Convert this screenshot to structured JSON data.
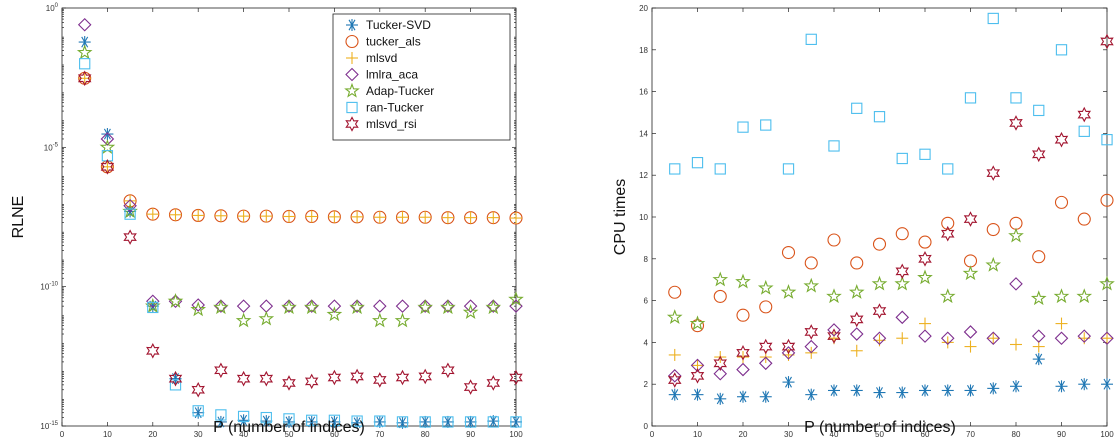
{
  "chart_data": [
    {
      "type": "scatter",
      "id": "rlne",
      "xlabel": "P (number of indices)",
      "ylabel": "RLNE",
      "yscale": "log",
      "xlim": [
        0,
        100
      ],
      "ylim": [
        1e-15,
        1
      ],
      "xticks": [
        "0",
        "10",
        "20",
        "30",
        "40",
        "50",
        "60",
        "70",
        "80",
        "90",
        "100"
      ],
      "yticks": [
        {
          "base": "10",
          "exp": "-15",
          "value": 1e-15
        },
        {
          "base": "10",
          "exp": "-10",
          "value": 1e-10
        },
        {
          "base": "10",
          "exp": "-5",
          "value": 1e-05
        },
        {
          "base": "10",
          "exp": "0",
          "value": 1
        }
      ],
      "legend_position": "top-right",
      "x": [
        5,
        10,
        15,
        20,
        25,
        30,
        35,
        40,
        45,
        50,
        55,
        60,
        65,
        70,
        75,
        80,
        85,
        90,
        95,
        100
      ],
      "series": [
        {
          "name": "Tucker-SVD",
          "marker": "asterisk",
          "color": "#1f77b4",
          "values": [
            0.06,
            3e-05,
            5e-08,
            2e-11,
            5e-14,
            3e-15,
            1.4e-15,
            1.6e-15,
            1.5e-15,
            1.4e-15,
            1.4e-15,
            1.4e-15,
            1.3e-15,
            1.4e-15,
            1.3e-15,
            1.4e-15,
            1.4e-15,
            1.4e-15,
            1.5e-15,
            1.4e-15
          ]
        },
        {
          "name": "tucker_als",
          "marker": "circle",
          "color": "#d95319",
          "values": [
            0.003,
            2e-06,
            1.2e-07,
            4e-08,
            3.8e-08,
            3.6e-08,
            3.5e-08,
            3.4e-08,
            3.4e-08,
            3.3e-08,
            3.3e-08,
            3.2e-08,
            3.2e-08,
            3.1e-08,
            3.1e-08,
            3.1e-08,
            3e-08,
            3e-08,
            3e-08,
            2.9e-08
          ]
        },
        {
          "name": "mlsvd",
          "marker": "plus",
          "color": "#edb120",
          "values": [
            0.003,
            2e-06,
            1.2e-07,
            4e-08,
            3.8e-08,
            3.6e-08,
            3.5e-08,
            3.4e-08,
            3.4e-08,
            3.3e-08,
            3.3e-08,
            3.2e-08,
            3.2e-08,
            3.1e-08,
            3.1e-08,
            3.1e-08,
            3e-08,
            3e-08,
            3e-08,
            2.9e-08
          ]
        },
        {
          "name": "lmlra_aca",
          "marker": "diamond",
          "color": "#7e2f8e",
          "values": [
            0.25,
            2e-05,
            8e-08,
            3e-11,
            3e-11,
            2.2e-11,
            2e-11,
            2e-11,
            2e-11,
            2e-11,
            2e-11,
            2e-11,
            2e-11,
            2e-11,
            2e-11,
            2e-11,
            2e-11,
            2e-11,
            2e-11,
            2e-11
          ]
        },
        {
          "name": "Adap-Tucker",
          "marker": "star5",
          "color": "#77ac30",
          "values": [
            0.025,
            1e-05,
            5e-08,
            2e-11,
            3e-11,
            1.5e-11,
            1.8e-11,
            6e-12,
            7e-12,
            1.8e-11,
            1.8e-11,
            1e-11,
            1.8e-11,
            6e-12,
            6e-12,
            1.8e-11,
            1.8e-11,
            1.2e-11,
            1.8e-11,
            3.5e-11
          ]
        },
        {
          "name": "ran-Tucker",
          "marker": "square",
          "color": "#4dbeee",
          "values": [
            0.01,
            5e-06,
            4e-08,
            1.8e-11,
            3e-14,
            3.5e-15,
            2.5e-15,
            2.2e-15,
            2e-15,
            1.8e-15,
            1.6e-15,
            1.6e-15,
            1.5e-15,
            1.5e-15,
            1.4e-15,
            1.4e-15,
            1.4e-15,
            1.4e-15,
            1.4e-15,
            1.4e-15
          ]
        },
        {
          "name": "mlsvd_rsi",
          "marker": "hexagram",
          "color": "#a2142f",
          "values": [
            0.003,
            2e-06,
            6e-09,
            5e-13,
            5e-14,
            2e-14,
            1e-13,
            5e-14,
            5e-14,
            3.5e-14,
            4e-14,
            5.5e-14,
            6e-14,
            4.5e-14,
            5.5e-14,
            6e-14,
            1e-13,
            2.5e-14,
            3.5e-14,
            5.5e-14
          ]
        }
      ]
    },
    {
      "type": "scatter",
      "id": "cpu",
      "xlabel": "P (number of indices)",
      "ylabel": "CPU times",
      "yscale": "linear",
      "xlim": [
        0,
        100
      ],
      "ylim": [
        0,
        20
      ],
      "xticks": [
        "0",
        "10",
        "20",
        "30",
        "40",
        "50",
        "60",
        "70",
        "80",
        "90",
        "100"
      ],
      "yticks": [
        "0",
        "2",
        "4",
        "6",
        "8",
        "10",
        "12",
        "14",
        "16",
        "18",
        "20"
      ],
      "x": [
        5,
        10,
        15,
        20,
        25,
        30,
        35,
        40,
        45,
        50,
        55,
        60,
        65,
        70,
        75,
        80,
        85,
        90,
        95,
        100
      ],
      "series": [
        {
          "name": "Tucker-SVD",
          "marker": "asterisk",
          "color": "#1f77b4",
          "values": [
            1.5,
            1.5,
            1.3,
            1.4,
            1.4,
            2.1,
            1.5,
            1.7,
            1.7,
            1.6,
            1.6,
            1.7,
            1.7,
            1.7,
            1.8,
            1.9,
            3.2,
            1.9,
            2.0,
            2.0
          ]
        },
        {
          "name": "tucker_als",
          "marker": "circle",
          "color": "#d95319",
          "values": [
            6.4,
            4.8,
            6.2,
            5.3,
            5.7,
            8.3,
            7.8,
            8.9,
            7.8,
            8.7,
            9.2,
            8.8,
            9.7,
            7.9,
            9.4,
            9.7,
            8.1,
            10.7,
            9.9,
            10.8
          ]
        },
        {
          "name": "mlsvd",
          "marker": "plus",
          "color": "#edb120",
          "values": [
            3.4,
            2.9,
            3.3,
            3.3,
            3.3,
            3.4,
            3.5,
            4.2,
            3.6,
            4.1,
            4.2,
            4.9,
            4.0,
            3.8,
            4.2,
            3.9,
            3.8,
            4.9,
            4.2,
            4.2
          ]
        },
        {
          "name": "lmlra_aca",
          "marker": "diamond",
          "color": "#7e2f8e",
          "values": [
            2.4,
            2.9,
            2.5,
            2.7,
            3.0,
            3.5,
            3.8,
            4.6,
            4.4,
            4.2,
            5.2,
            4.3,
            4.2,
            4.5,
            4.2,
            6.8,
            4.3,
            4.2,
            4.3,
            4.2
          ]
        },
        {
          "name": "Adap-Tucker",
          "marker": "star5",
          "color": "#77ac30",
          "values": [
            5.2,
            4.9,
            7.0,
            6.9,
            6.6,
            6.4,
            6.7,
            6.2,
            6.4,
            6.8,
            6.8,
            7.1,
            6.2,
            7.3,
            7.7,
            9.1,
            6.1,
            6.2,
            6.2,
            6.8
          ]
        },
        {
          "name": "ran-Tucker",
          "marker": "square",
          "color": "#4dbeee",
          "values": [
            12.3,
            12.6,
            12.3,
            14.3,
            14.4,
            12.3,
            18.5,
            13.4,
            15.2,
            14.8,
            12.8,
            13.0,
            12.3,
            15.7,
            19.5,
            15.7,
            15.1,
            18.0,
            14.1,
            13.7
          ]
        },
        {
          "name": "mlsvd_rsi",
          "marker": "hexagram",
          "color": "#a2142f",
          "values": [
            2.2,
            2.4,
            3.0,
            3.5,
            3.8,
            3.8,
            4.5,
            4.3,
            5.1,
            5.5,
            7.4,
            8.0,
            9.2,
            9.9,
            12.1,
            14.5,
            13.0,
            13.7,
            14.9,
            18.4
          ]
        }
      ]
    }
  ]
}
